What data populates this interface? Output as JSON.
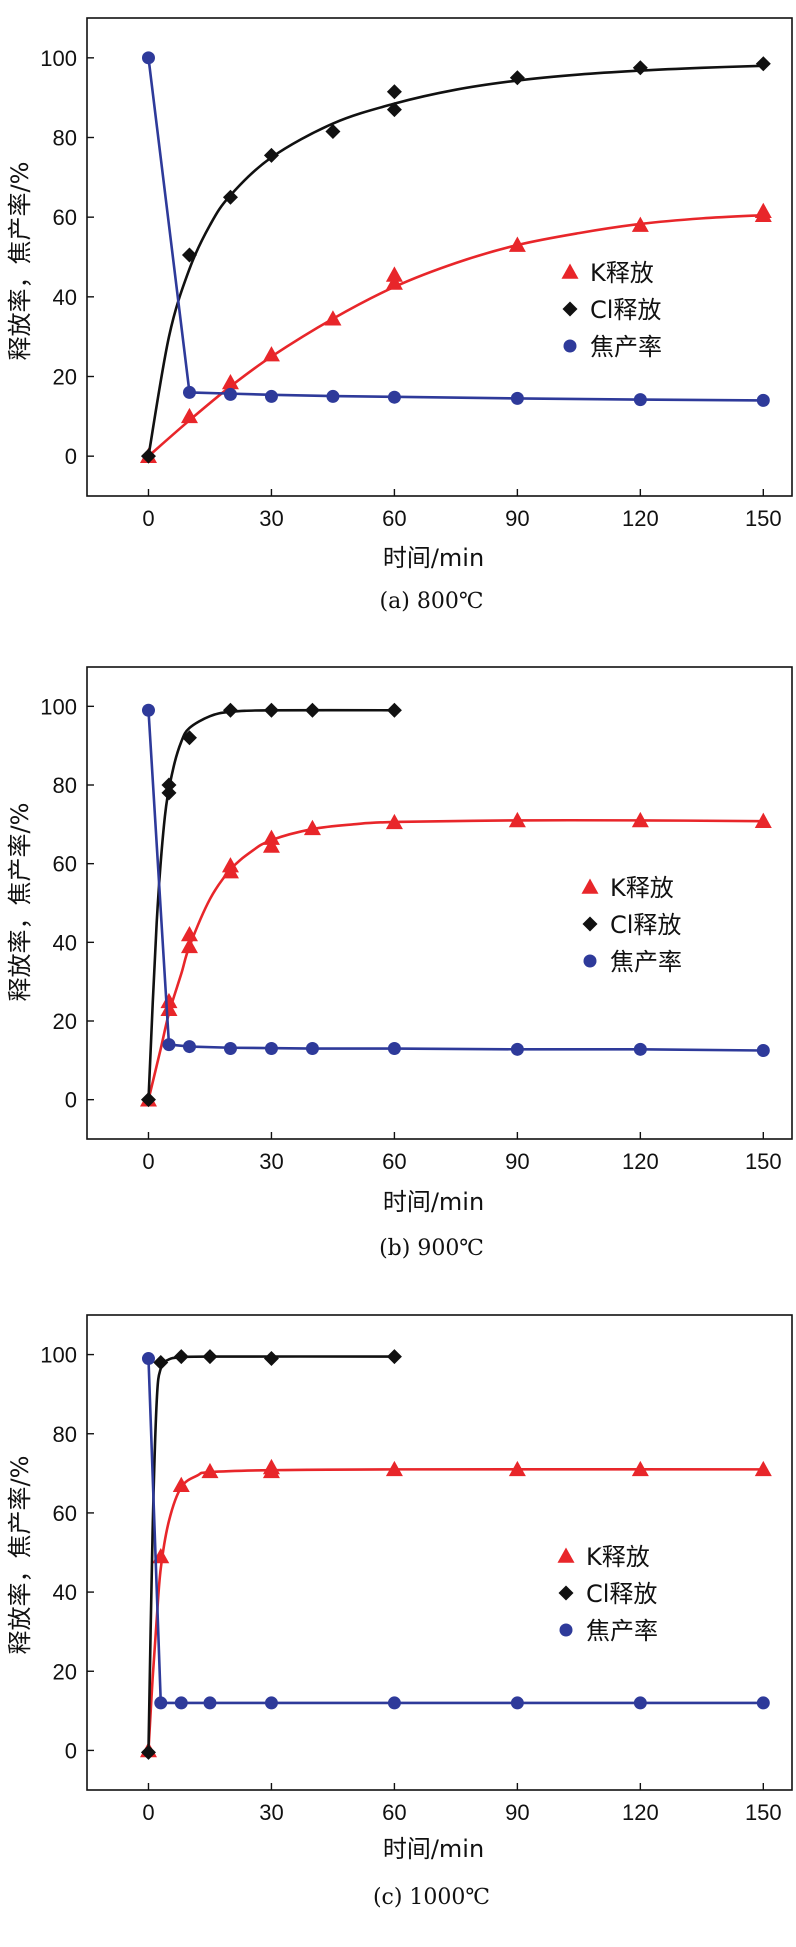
{
  "colors": {
    "k": "#e8262a",
    "cl": "#111111",
    "char": "#2e3a9a"
  },
  "chart_data": [
    {
      "type": "line",
      "caption": "(a) 800℃",
      "xlabel": "时间/min",
      "ylabel": "释放率，焦产率/%",
      "xlim": [
        -15,
        157
      ],
      "ylim": [
        -10,
        110
      ],
      "xticks": [
        0,
        30,
        60,
        90,
        120,
        150
      ],
      "yticks": [
        0,
        20,
        40,
        60,
        80,
        100
      ],
      "legend_position": "center-right",
      "series": [
        {
          "name": "K释放",
          "marker": "triangle",
          "color_key": "k",
          "x": [
            0,
            10,
            20,
            30,
            45,
            60,
            60,
            90,
            120,
            150,
            150
          ],
          "y": [
            0,
            10,
            18.5,
            25.5,
            34.5,
            43.5,
            45.5,
            53,
            58,
            61.5,
            60.5
          ],
          "fit": [
            [
              0,
              0
            ],
            [
              10,
              9
            ],
            [
              20,
              17.5
            ],
            [
              30,
              25
            ],
            [
              45,
              34.5
            ],
            [
              60,
              42.5
            ],
            [
              75,
              48.5
            ],
            [
              90,
              53
            ],
            [
              105,
              56
            ],
            [
              120,
              58.3
            ],
            [
              135,
              59.7
            ],
            [
              150,
              60.5
            ]
          ]
        },
        {
          "name": "Cl释放",
          "marker": "diamond",
          "color_key": "cl",
          "x": [
            0,
            10,
            20,
            30,
            45,
            60,
            60,
            90,
            120,
            150
          ],
          "y": [
            0,
            50.5,
            65,
            75.5,
            81.5,
            87,
            91.5,
            95,
            97.5,
            98.5
          ],
          "fit": [
            [
              0,
              0
            ],
            [
              5,
              30
            ],
            [
              10,
              47
            ],
            [
              15,
              58
            ],
            [
              20,
              65.5
            ],
            [
              30,
              75
            ],
            [
              45,
              83.5
            ],
            [
              60,
              88.5
            ],
            [
              75,
              92
            ],
            [
              90,
              94.3
            ],
            [
              105,
              95.8
            ],
            [
              120,
              96.8
            ],
            [
              135,
              97.5
            ],
            [
              150,
              98
            ]
          ]
        },
        {
          "name": "焦产率",
          "marker": "circle",
          "color_key": "char",
          "x": [
            0,
            10,
            20,
            30,
            45,
            60,
            90,
            120,
            150
          ],
          "y": [
            100,
            16,
            15.5,
            15,
            15,
            14.8,
            14.5,
            14.2,
            14
          ],
          "fit": [
            [
              0,
              100
            ],
            [
              10,
              16
            ],
            [
              20,
              15.7
            ],
            [
              30,
              15.4
            ],
            [
              45,
              15.1
            ],
            [
              60,
              14.9
            ],
            [
              90,
              14.5
            ],
            [
              120,
              14.2
            ],
            [
              150,
              14
            ]
          ]
        }
      ]
    },
    {
      "type": "line",
      "caption": "(b) 900℃",
      "xlabel": "时间/min",
      "ylabel": "释放率，焦产率/%",
      "xlim": [
        -15,
        157
      ],
      "ylim": [
        -10,
        110
      ],
      "xticks": [
        0,
        30,
        60,
        90,
        120,
        150
      ],
      "yticks": [
        0,
        20,
        40,
        60,
        80,
        100
      ],
      "legend_position": "center-right",
      "series": [
        {
          "name": "K释放",
          "marker": "triangle",
          "color_key": "k",
          "x": [
            0,
            5,
            5,
            10,
            10,
            20,
            20,
            30,
            30,
            40,
            60,
            90,
            120,
            150
          ],
          "y": [
            0,
            23,
            25,
            39,
            42,
            58,
            59.5,
            64.5,
            66.5,
            69,
            70.5,
            71,
            71,
            70.8
          ],
          "fit": [
            [
              0,
              0
            ],
            [
              3,
              13
            ],
            [
              5,
              22
            ],
            [
              8,
              32
            ],
            [
              10,
              39
            ],
            [
              15,
              51
            ],
            [
              20,
              58.5
            ],
            [
              25,
              63
            ],
            [
              30,
              66
            ],
            [
              40,
              68.8
            ],
            [
              50,
              70
            ],
            [
              60,
              70.6
            ],
            [
              90,
              71
            ],
            [
              120,
              71
            ],
            [
              150,
              70.8
            ]
          ]
        },
        {
          "name": "Cl释放",
          "marker": "diamond",
          "color_key": "cl",
          "x": [
            0,
            5,
            5,
            10,
            20,
            30,
            40,
            60
          ],
          "y": [
            0,
            78,
            80,
            92,
            99,
            99,
            99,
            99
          ],
          "fit": [
            [
              0,
              0
            ],
            [
              2,
              45
            ],
            [
              4,
              72
            ],
            [
              6,
              84
            ],
            [
              8,
              91
            ],
            [
              10,
              94.5
            ],
            [
              15,
              97.5
            ],
            [
              20,
              98.6
            ],
            [
              30,
              99
            ],
            [
              60,
              99
            ]
          ]
        },
        {
          "name": "焦产率",
          "marker": "circle",
          "color_key": "char",
          "x": [
            0,
            5,
            10,
            20,
            30,
            40,
            60,
            90,
            120,
            150
          ],
          "y": [
            99,
            14,
            13.5,
            13,
            13,
            13,
            13,
            12.8,
            12.8,
            12.5
          ],
          "fit": [
            [
              0,
              99
            ],
            [
              5,
              14
            ],
            [
              10,
              13.5
            ],
            [
              20,
              13.2
            ],
            [
              40,
              13
            ],
            [
              60,
              13
            ],
            [
              90,
              12.8
            ],
            [
              120,
              12.8
            ],
            [
              150,
              12.5
            ]
          ]
        }
      ]
    },
    {
      "type": "line",
      "caption": "(c) 1000℃",
      "xlabel": "时间/min",
      "ylabel": "释放率，焦产率/%",
      "xlim": [
        -15,
        157
      ],
      "ylim": [
        -10,
        110
      ],
      "xticks": [
        0,
        30,
        60,
        90,
        120,
        150
      ],
      "yticks": [
        0,
        20,
        40,
        60,
        80,
        100
      ],
      "legend_position": "center-right",
      "series": [
        {
          "name": "K释放",
          "marker": "triangle",
          "color_key": "k",
          "x": [
            0,
            3,
            8,
            15,
            30,
            30,
            60,
            90,
            120,
            150
          ],
          "y": [
            0,
            49,
            67,
            70.5,
            70.5,
            71.5,
            71,
            71,
            71,
            71
          ],
          "fit": [
            [
              0,
              0
            ],
            [
              1,
              18
            ],
            [
              2,
              33
            ],
            [
              3,
              46
            ],
            [
              5,
              58
            ],
            [
              8,
              66.5
            ],
            [
              12,
              69.5
            ],
            [
              15,
              70.3
            ],
            [
              30,
              70.8
            ],
            [
              60,
              71
            ],
            [
              150,
              71
            ]
          ]
        },
        {
          "name": "Cl释放",
          "marker": "diamond",
          "color_key": "cl",
          "x": [
            0,
            3,
            8,
            15,
            30,
            60
          ],
          "y": [
            -0.5,
            98,
            99.5,
            99.5,
            99,
            99.5
          ],
          "fit": [
            [
              0,
              0
            ],
            [
              1,
              55
            ],
            [
              2,
              88
            ],
            [
              3,
              96.5
            ],
            [
              5,
              98.8
            ],
            [
              8,
              99.3
            ],
            [
              15,
              99.5
            ],
            [
              60,
              99.5
            ]
          ]
        },
        {
          "name": "焦产率",
          "marker": "circle",
          "color_key": "char",
          "x": [
            0,
            3,
            8,
            15,
            30,
            60,
            90,
            120,
            150
          ],
          "y": [
            99,
            12,
            12,
            12,
            12,
            12,
            12,
            12,
            12
          ],
          "fit": [
            [
              0,
              99
            ],
            [
              3,
              12
            ],
            [
              8,
              12
            ],
            [
              30,
              12
            ],
            [
              60,
              12
            ],
            [
              90,
              12
            ],
            [
              120,
              12
            ],
            [
              150,
              12
            ]
          ]
        }
      ]
    }
  ]
}
